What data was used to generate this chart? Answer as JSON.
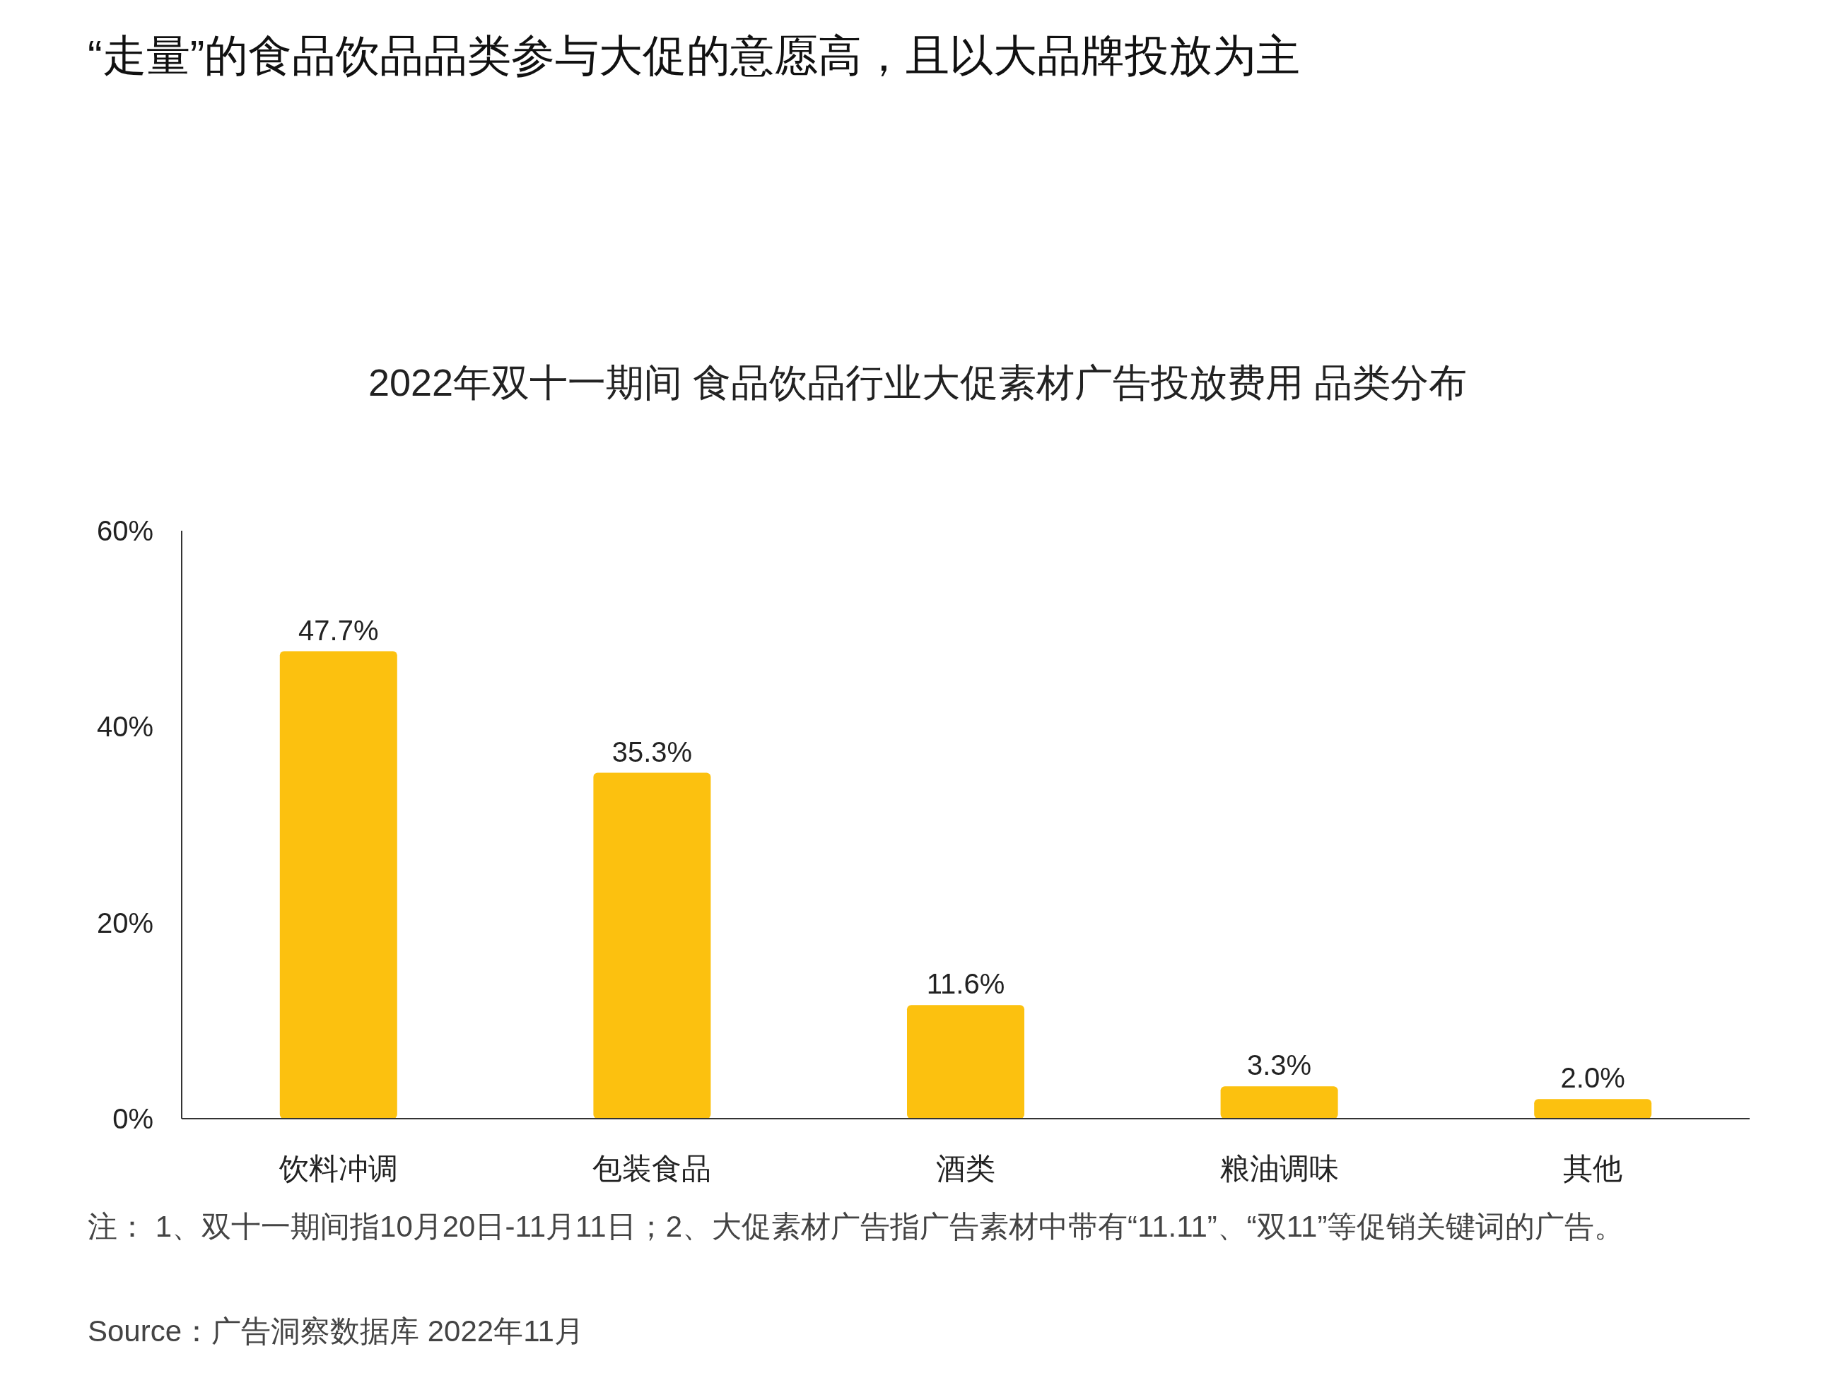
{
  "chart_data": {
    "type": "bar",
    "title": "“走量”的食品饮品品类参与大促的意愿高，且以大品牌投放为主",
    "subtitle": "2022年双十一期间 食品饮品行业大促素材广告投放费用 品类分布",
    "categories": [
      "饮料冲调",
      "包装食品",
      "酒类",
      "粮油调味",
      "其他"
    ],
    "values": [
      47.7,
      35.3,
      11.6,
      3.3,
      2.0
    ],
    "value_labels": [
      "47.7%",
      "35.3%",
      "11.6%",
      "3.3%",
      "2.0%"
    ],
    "color": "#fcc10f",
    "ylim": [
      0,
      60
    ],
    "yticks": [
      {
        "value": 0,
        "label": "0%"
      },
      {
        "value": 20,
        "label": "20%"
      },
      {
        "value": 40,
        "label": "40%"
      },
      {
        "value": 60,
        "label": "60%"
      }
    ],
    "grid": false,
    "annotations": [
      "注： 1、双十一期间指10月20日-11月11日；2、大促素材广告指广告素材中带有“11.11”、“双11”等促销关键词的广告。",
      "Source：广告洞察数据库 2022年11月"
    ]
  }
}
